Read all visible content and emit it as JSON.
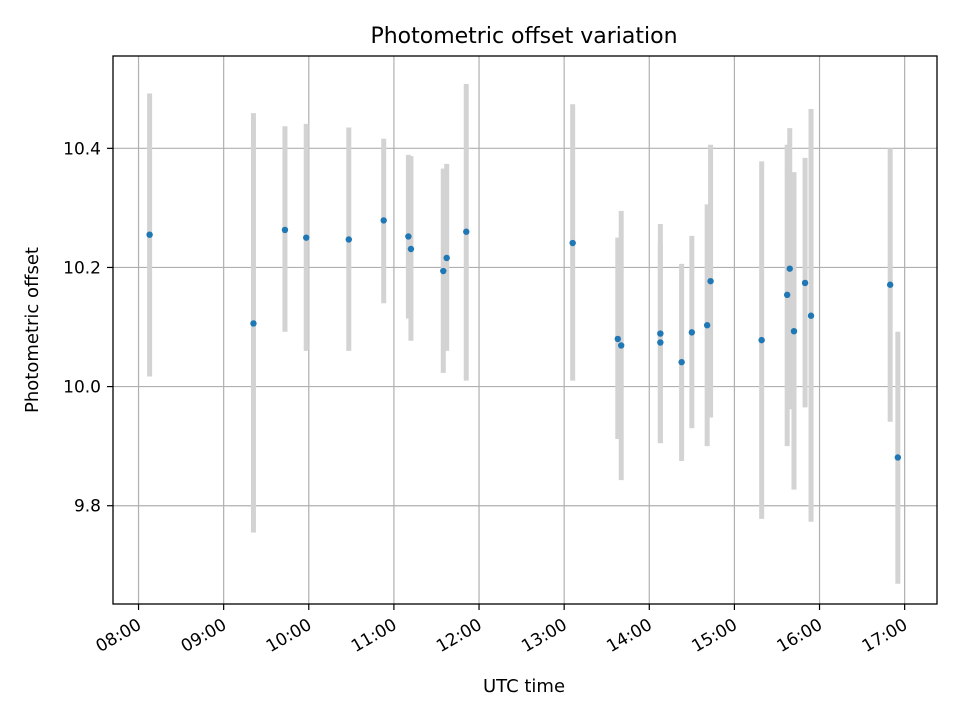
{
  "chart_data": {
    "type": "scatter",
    "title": "Photometric offset variation",
    "xlabel": "UTC time",
    "ylabel": "Photometric offset",
    "xlim": [
      7.7,
      17.38
    ],
    "ylim": [
      9.635,
      10.555
    ],
    "grid": true,
    "x_ticks": [
      {
        "value": 8,
        "label": "08:00"
      },
      {
        "value": 9,
        "label": "09:00"
      },
      {
        "value": 10,
        "label": "10:00"
      },
      {
        "value": 11,
        "label": "11:00"
      },
      {
        "value": 12,
        "label": "12:00"
      },
      {
        "value": 13,
        "label": "13:00"
      },
      {
        "value": 14,
        "label": "14:00"
      },
      {
        "value": 15,
        "label": "15:00"
      },
      {
        "value": 16,
        "label": "16:00"
      },
      {
        "value": 17,
        "label": "17:00"
      }
    ],
    "y_ticks": [
      {
        "value": 9.8,
        "label": "9.8"
      },
      {
        "value": 10.0,
        "label": "10.0"
      },
      {
        "value": 10.2,
        "label": "10.2"
      },
      {
        "value": 10.4,
        "label": "10.4"
      }
    ],
    "series": [
      {
        "name": "offset",
        "color": "#1f77b4",
        "errorbar_color": "#d3d3d3",
        "points": [
          {
            "x": 8.13,
            "y": 10.255,
            "lo": 10.017,
            "hi": 10.492
          },
          {
            "x": 9.35,
            "y": 10.106,
            "lo": 9.755,
            "hi": 10.459
          },
          {
            "x": 9.72,
            "y": 10.263,
            "lo": 10.092,
            "hi": 10.437
          },
          {
            "x": 9.97,
            "y": 10.25,
            "lo": 10.06,
            "hi": 10.441
          },
          {
            "x": 10.47,
            "y": 10.247,
            "lo": 10.06,
            "hi": 10.435
          },
          {
            "x": 10.88,
            "y": 10.279,
            "lo": 10.14,
            "hi": 10.416
          },
          {
            "x": 11.17,
            "y": 10.252,
            "lo": 10.114,
            "hi": 10.389
          },
          {
            "x": 11.2,
            "y": 10.231,
            "lo": 10.077,
            "hi": 10.387
          },
          {
            "x": 11.58,
            "y": 10.194,
            "lo": 10.023,
            "hi": 10.366
          },
          {
            "x": 11.62,
            "y": 10.216,
            "lo": 10.06,
            "hi": 10.374
          },
          {
            "x": 11.85,
            "y": 10.26,
            "lo": 10.01,
            "hi": 10.508
          },
          {
            "x": 13.1,
            "y": 10.241,
            "lo": 10.01,
            "hi": 10.474
          },
          {
            "x": 13.63,
            "y": 10.08,
            "lo": 9.912,
            "hi": 10.25
          },
          {
            "x": 13.67,
            "y": 10.069,
            "lo": 9.843,
            "hi": 10.295
          },
          {
            "x": 14.13,
            "y": 10.089,
            "lo": 9.905,
            "hi": 10.273
          },
          {
            "x": 14.13,
            "y": 10.074,
            "lo": 9.905,
            "hi": 10.24
          },
          {
            "x": 14.38,
            "y": 10.041,
            "lo": 9.875,
            "hi": 10.206
          },
          {
            "x": 14.5,
            "y": 10.091,
            "lo": 9.93,
            "hi": 10.253
          },
          {
            "x": 14.68,
            "y": 10.103,
            "lo": 9.9,
            "hi": 10.306
          },
          {
            "x": 14.72,
            "y": 10.177,
            "lo": 9.948,
            "hi": 10.406
          },
          {
            "x": 15.32,
            "y": 10.078,
            "lo": 9.778,
            "hi": 10.378
          },
          {
            "x": 15.62,
            "y": 10.154,
            "lo": 9.9,
            "hi": 10.406
          },
          {
            "x": 15.65,
            "y": 10.198,
            "lo": 9.962,
            "hi": 10.434
          },
          {
            "x": 15.7,
            "y": 10.093,
            "lo": 9.827,
            "hi": 10.36
          },
          {
            "x": 15.83,
            "y": 10.174,
            "lo": 9.965,
            "hi": 10.384
          },
          {
            "x": 15.9,
            "y": 10.119,
            "lo": 9.773,
            "hi": 10.466
          },
          {
            "x": 16.83,
            "y": 10.171,
            "lo": 9.941,
            "hi": 10.4
          },
          {
            "x": 16.92,
            "y": 9.881,
            "lo": 9.669,
            "hi": 10.092
          }
        ]
      }
    ]
  }
}
